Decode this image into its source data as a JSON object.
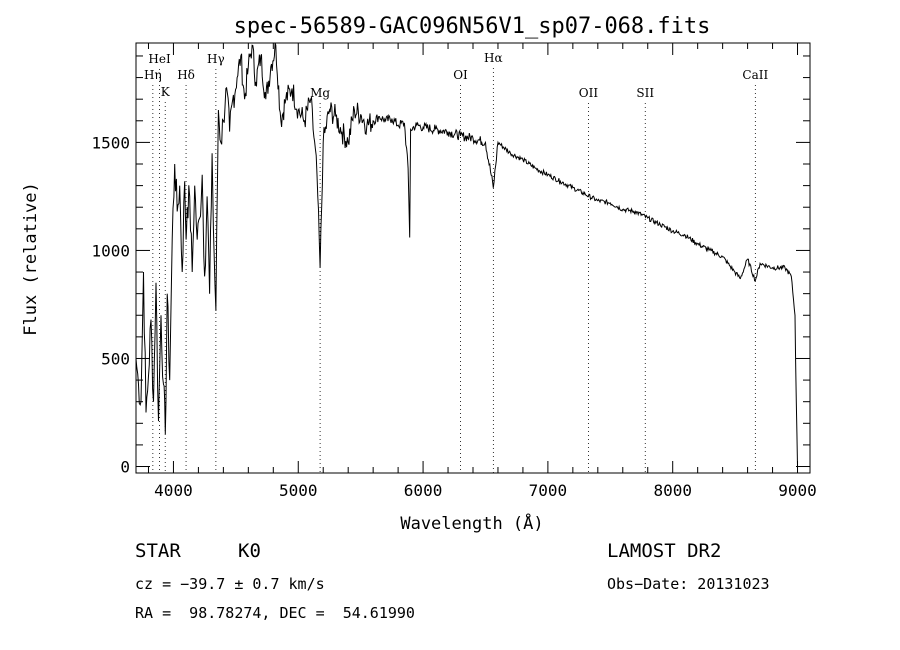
{
  "chart_data": {
    "type": "line",
    "title": "spec-56589-GAC096N56V1_sp07-068.fits",
    "xlabel": "Wavelength (Å)",
    "ylabel": "Flux (relative)",
    "xlim": [
      3700,
      9100
    ],
    "ylim": [
      -30,
      1960
    ],
    "x_ticks": [
      4000,
      5000,
      6000,
      7000,
      8000,
      9000
    ],
    "x_tick_labels": [
      "4000",
      "5000",
      "6000",
      "7000",
      "8000",
      "9000"
    ],
    "y_ticks": [
      0,
      500,
      1000,
      1500
    ],
    "y_tick_labels": [
      "0",
      "500",
      "1000",
      "1500"
    ],
    "grid": false,
    "series": [
      {
        "x": [
          3700,
          3720,
          3740,
          3760,
          3780,
          3800,
          3820,
          3840,
          3860,
          3880,
          3900,
          3920,
          3935,
          3950,
          3970,
          3990,
          4010,
          4030,
          4050,
          4070,
          4090,
          4101,
          4110,
          4130,
          4150,
          4170,
          4190,
          4210,
          4230,
          4250,
          4270,
          4290,
          4310,
          4320,
          4340,
          4360,
          4380,
          4400,
          4420,
          4450,
          4480,
          4510,
          4540,
          4570,
          4600,
          4630,
          4660,
          4700,
          4740,
          4780,
          4820,
          4861,
          4900,
          4950,
          5000,
          5050,
          5100,
          5150,
          5175,
          5200,
          5250,
          5300,
          5350,
          5400,
          5450,
          5500,
          5550,
          5600,
          5650,
          5700,
          5750,
          5800,
          5850,
          5880,
          5893,
          5900,
          5950,
          6000,
          6100,
          6200,
          6300,
          6400,
          6500,
          6563,
          6600,
          6700,
          6800,
          6900,
          7000,
          7100,
          7200,
          7300,
          7400,
          7500,
          7600,
          7700,
          7800,
          7900,
          8000,
          8100,
          8200,
          8300,
          8400,
          8498,
          8542,
          8600,
          8662,
          8700,
          8800,
          8900,
          8950,
          8980,
          8990,
          9000
        ],
        "y": [
          500,
          380,
          300,
          900,
          250,
          420,
          680,
          300,
          850,
          210,
          700,
          380,
          150,
          800,
          400,
          1050,
          1400,
          1180,
          1300,
          900,
          1320,
          1050,
          1200,
          1250,
          900,
          1300,
          1050,
          1150,
          1350,
          880,
          1250,
          800,
          1450,
          1100,
          720,
          1650,
          1500,
          1600,
          1750,
          1550,
          1720,
          1800,
          1900,
          1700,
          1850,
          1950,
          1780,
          1900,
          1700,
          1850,
          1950,
          1600,
          1700,
          1750,
          1650,
          1600,
          1700,
          1350,
          920,
          1500,
          1650,
          1620,
          1550,
          1500,
          1650,
          1630,
          1580,
          1600,
          1620,
          1600,
          1610,
          1580,
          1590,
          1380,
          1060,
          1560,
          1580,
          1570,
          1560,
          1550,
          1530,
          1520,
          1500,
          1290,
          1500,
          1450,
          1420,
          1380,
          1350,
          1320,
          1290,
          1260,
          1230,
          1220,
          1190,
          1180,
          1150,
          1120,
          1090,
          1070,
          1030,
          1000,
          970,
          900,
          870,
          960,
          860,
          940,
          920,
          920,
          880,
          700,
          300,
          0
        ]
      }
    ],
    "line_markers": [
      {
        "name": "HeI",
        "x": 3889
      },
      {
        "name": "Hη",
        "x": 3835
      },
      {
        "name": "K",
        "x": 3934
      },
      {
        "name": "Hδ",
        "x": 4101
      },
      {
        "name": "Hγ",
        "x": 4340
      },
      {
        "name": "Mg",
        "x": 5175
      },
      {
        "name": "OI",
        "x": 6300
      },
      {
        "name": "Hα",
        "x": 6563
      },
      {
        "name": "OII",
        "x": 7325
      },
      {
        "name": "SII",
        "x": 7780
      },
      {
        "name": "CaII",
        "x": 8662
      }
    ]
  },
  "info": {
    "object_class": "STAR",
    "subclass": "K0",
    "survey": "LAMOST DR2",
    "velocity": "cz = −39.7 ± 0.7 km/s",
    "obs_date": "Obs−Date: 20131023",
    "coordinates": "RA =  98.78274, DEC =  54.61990"
  },
  "colors": {
    "line": "#000000",
    "background": "#ffffff"
  }
}
